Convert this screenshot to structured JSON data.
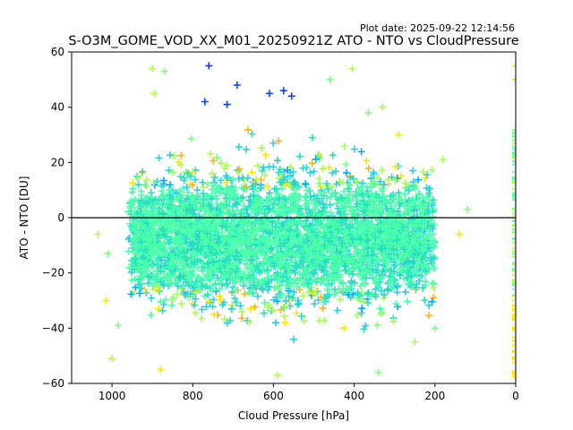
{
  "chart_data": {
    "type": "scatter",
    "title": "S-O3M_GOME_VOD_XX_M01_20250921Z ATO - NTO vs CloudPressure",
    "plot_date": "Plot date: 2025-09-22 12:14:56",
    "xlabel": "Cloud Pressure [hPa]",
    "ylabel": "ATO - NTO [DU]",
    "xlim": [
      1100,
      0
    ],
    "ylim": [
      -60,
      60
    ],
    "xticks": [
      1000,
      800,
      600,
      400,
      200,
      0
    ],
    "yticks": [
      -60,
      -40,
      -20,
      0,
      20,
      40,
      60
    ],
    "reference_line_y": 0,
    "marker": "+",
    "grid": false,
    "colors": [
      "#4dffaa",
      "#33ccdd",
      "#22e0c0",
      "#a8ff4f",
      "#ffe600",
      "#ffb020",
      "#00a8ff",
      "#0040ff",
      "#7fff7f"
    ],
    "outliers": [
      {
        "x": 770,
        "y": 42
      },
      {
        "x": 575,
        "y": 46
      },
      {
        "x": 715,
        "y": 41
      },
      {
        "x": 900,
        "y": 54
      },
      {
        "x": 870,
        "y": 53
      },
      {
        "x": 760,
        "y": 55
      },
      {
        "x": 405,
        "y": 54
      },
      {
        "x": 460,
        "y": 50
      },
      {
        "x": 610,
        "y": 45
      },
      {
        "x": 895,
        "y": 45
      },
      {
        "x": 690,
        "y": 48
      },
      {
        "x": 555,
        "y": 44
      },
      {
        "x": 330,
        "y": 40
      },
      {
        "x": 365,
        "y": 38
      },
      {
        "x": 290,
        "y": 30
      },
      {
        "x": 180,
        "y": 21
      },
      {
        "x": 120,
        "y": 3
      },
      {
        "x": 140,
        "y": -6
      },
      {
        "x": 1035,
        "y": -6
      },
      {
        "x": 1010,
        "y": -13
      },
      {
        "x": 1015,
        "y": -30
      },
      {
        "x": 1000,
        "y": -51
      },
      {
        "x": 985,
        "y": -39
      },
      {
        "x": 0,
        "y": 55
      },
      {
        "x": 0,
        "y": 50
      },
      {
        "x": 0,
        "y": 28
      },
      {
        "x": 0,
        "y": -56
      },
      {
        "x": 250,
        "y": -45
      },
      {
        "x": 200,
        "y": -40
      },
      {
        "x": 880,
        "y": -55
      },
      {
        "x": 590,
        "y": -57
      },
      {
        "x": 340,
        "y": -56
      }
    ]
  }
}
